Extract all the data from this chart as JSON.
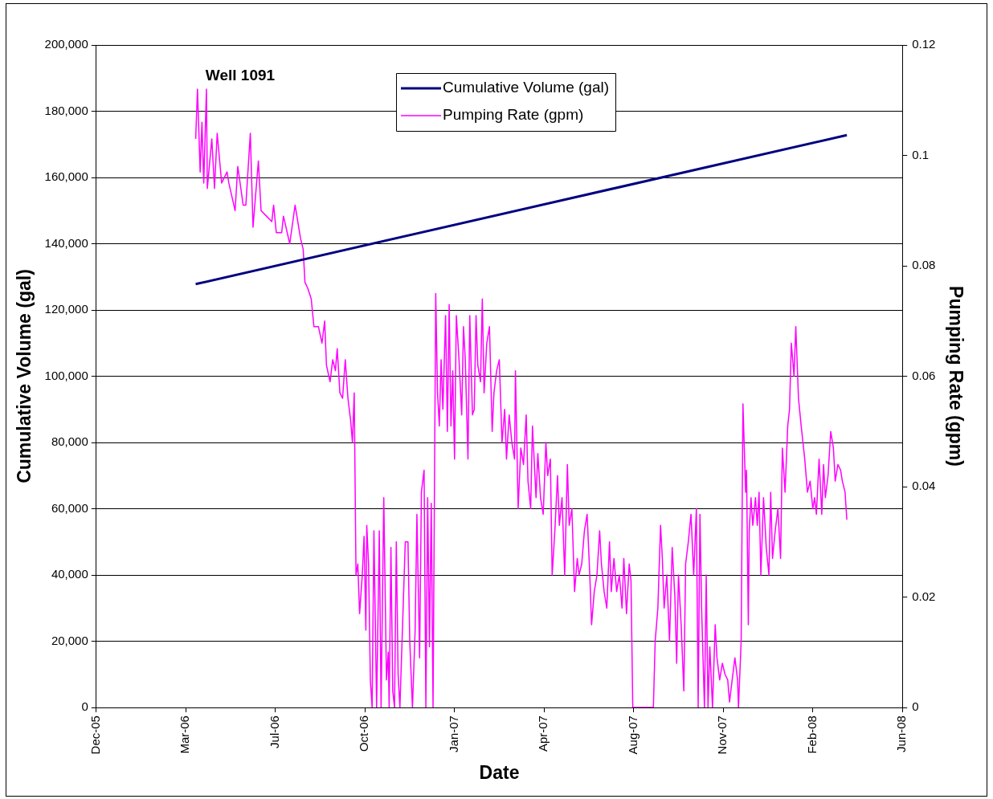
{
  "chart_data": {
    "type": "line",
    "xlabel": "Date",
    "ylabel": "Cumulative Volume (gal)",
    "y2label": "Pumping Rate (gpm)",
    "annotations": [
      "Well 1091"
    ],
    "xlim": [
      "2005-12-15",
      "2008-06-02"
    ],
    "xticks": [
      {
        "value": "2005-12-15",
        "label": "Dec-05"
      },
      {
        "value": "2006-03-25",
        "label": "Mar-06"
      },
      {
        "value": "2006-07-03",
        "label": "Jul-06"
      },
      {
        "value": "2006-10-11",
        "label": "Oct-06"
      },
      {
        "value": "2007-01-19",
        "label": "Jan-07"
      },
      {
        "value": "2007-04-29",
        "label": "Apr-07"
      },
      {
        "value": "2007-08-07",
        "label": "Aug-07"
      },
      {
        "value": "2007-11-15",
        "label": "Nov-07"
      },
      {
        "value": "2008-02-23",
        "label": "Feb-08"
      },
      {
        "value": "2008-06-02",
        "label": "Jun-08"
      }
    ],
    "ylim": [
      0,
      200000
    ],
    "yticks": [
      {
        "value": 0,
        "label": "0"
      },
      {
        "value": 20000,
        "label": "20,000"
      },
      {
        "value": 40000,
        "label": "40,000"
      },
      {
        "value": 60000,
        "label": "60,000"
      },
      {
        "value": 80000,
        "label": "80,000"
      },
      {
        "value": 100000,
        "label": "100,000"
      },
      {
        "value": 120000,
        "label": "120,000"
      },
      {
        "value": 140000,
        "label": "140,000"
      },
      {
        "value": 160000,
        "label": "160,000"
      },
      {
        "value": 180000,
        "label": "180,000"
      },
      {
        "value": 200000,
        "label": "200,000"
      }
    ],
    "y2lim": [
      0,
      0.12
    ],
    "y2ticks": [
      0,
      0.02,
      0.04,
      0.06,
      0.08,
      0.1,
      0.12
    ],
    "grid": "y",
    "legend": "top",
    "marker": "none",
    "line_style": "solid",
    "series": [
      {
        "name": "Cumulative Volume (gal)",
        "color": "#000080",
        "x": [
          "2006-04-05",
          "2008-04-01"
        ],
        "values": [
          127800,
          172800
        ]
      },
      {
        "name": "Pumping Rate (gpm)",
        "color": "#ff00ff",
        "axis": "y2",
        "x": [
          "2006-04-05",
          "2006-04-07",
          "2006-04-10",
          "2006-04-12",
          "2006-04-14",
          "2006-04-17",
          "2006-04-18",
          "2006-04-23",
          "2006-04-26",
          "2006-04-29",
          "2006-05-04",
          "2006-05-10",
          "2006-05-12",
          "2006-05-19",
          "2006-05-22",
          "2006-05-28",
          "2006-05-31",
          "2006-06-05",
          "2006-06-08",
          "2006-06-14",
          "2006-06-17",
          "2006-06-23",
          "2006-06-29",
          "2006-07-01",
          "2006-07-04",
          "2006-07-10",
          "2006-07-12",
          "2006-07-19",
          "2006-07-25",
          "2006-07-31",
          "2006-08-03",
          "2006-08-05",
          "2006-08-08",
          "2006-08-12",
          "2006-08-15",
          "2006-08-20",
          "2006-08-24",
          "2006-08-27",
          "2006-08-29",
          "2006-09-02",
          "2006-09-05",
          "2006-09-08",
          "2006-09-10",
          "2006-09-13",
          "2006-09-16",
          "2006-09-19",
          "2006-09-22",
          "2006-09-25",
          "2006-09-27",
          "2006-09-29",
          "2006-10-01",
          "2006-10-03",
          "2006-10-05",
          "2006-10-08",
          "2006-10-10",
          "2006-10-12",
          "2006-10-13",
          "2006-10-15",
          "2006-10-17",
          "2006-10-19",
          "2006-10-21",
          "2006-10-24",
          "2006-10-27",
          "2006-10-29",
          "2006-11-01",
          "2006-11-04",
          "2006-11-06",
          "2006-11-07",
          "2006-11-09",
          "2006-11-11",
          "2006-11-13",
          "2006-11-15",
          "2006-11-17",
          "2006-11-19",
          "2006-11-22",
          "2006-11-25",
          "2006-11-28",
          "2006-11-30",
          "2006-12-03",
          "2006-12-06",
          "2006-12-08",
          "2006-12-11",
          "2006-12-13",
          "2006-12-16",
          "2006-12-18",
          "2006-12-20",
          "2006-12-22",
          "2006-12-24",
          "2006-12-26",
          "2006-12-29",
          "2006-12-31",
          "2007-01-02",
          "2007-01-04",
          "2007-01-06",
          "2007-01-09",
          "2007-01-11",
          "2007-01-13",
          "2007-01-15",
          "2007-01-17",
          "2007-01-19",
          "2007-01-21",
          "2007-01-24",
          "2007-01-27",
          "2007-01-29",
          "2007-01-31",
          "2007-02-03",
          "2007-02-05",
          "2007-02-08",
          "2007-02-10",
          "2007-02-12",
          "2007-02-14",
          "2007-02-17",
          "2007-02-19",
          "2007-02-21",
          "2007-02-24",
          "2007-02-27",
          "2007-03-02",
          "2007-03-04",
          "2007-03-07",
          "2007-03-10",
          "2007-03-13",
          "2007-03-16",
          "2007-03-18",
          "2007-03-21",
          "2007-03-24",
          "2007-03-27",
          "2007-03-28",
          "2007-03-31",
          "2007-04-03",
          "2007-04-06",
          "2007-04-09",
          "2007-04-11",
          "2007-04-14",
          "2007-04-16",
          "2007-04-20",
          "2007-04-22",
          "2007-04-25",
          "2007-04-28",
          "2007-05-01",
          "2007-05-03",
          "2007-05-06",
          "2007-05-08",
          "2007-05-11",
          "2007-05-14",
          "2007-05-16",
          "2007-05-19",
          "2007-05-22",
          "2007-05-25",
          "2007-05-27",
          "2007-05-30",
          "2007-06-02",
          "2007-06-05",
          "2007-06-07",
          "2007-06-10",
          "2007-06-13",
          "2007-06-16",
          "2007-06-19",
          "2007-06-21",
          "2007-06-24",
          "2007-06-27",
          "2007-06-30",
          "2007-07-02",
          "2007-07-05",
          "2007-07-08",
          "2007-07-11",
          "2007-07-13",
          "2007-07-16",
          "2007-07-19",
          "2007-07-22",
          "2007-07-25",
          "2007-07-27",
          "2007-07-30",
          "2007-08-02",
          "2007-08-04",
          "2007-08-06",
          "2007-08-29",
          "2007-08-31",
          "2007-09-03",
          "2007-09-06",
          "2007-09-08",
          "2007-09-10",
          "2007-09-13",
          "2007-09-16",
          "2007-09-19",
          "2007-09-22",
          "2007-09-24",
          "2007-09-26",
          "2007-09-29",
          "2007-10-02",
          "2007-10-04",
          "2007-10-07",
          "2007-10-10",
          "2007-10-13",
          "2007-10-16",
          "2007-10-18",
          "2007-10-20",
          "2007-10-22",
          "2007-10-25",
          "2007-10-27",
          "2007-10-29",
          "2007-10-31",
          "2007-11-03",
          "2007-11-06",
          "2007-11-08",
          "2007-11-11",
          "2007-11-14",
          "2007-11-17",
          "2007-11-20",
          "2007-11-22",
          "2007-11-28",
          "2007-12-01",
          "2007-12-02",
          "2007-12-05",
          "2007-12-07",
          "2007-12-10",
          "2007-12-11",
          "2007-12-13",
          "2007-12-14",
          "2007-12-16",
          "2007-12-18",
          "2007-12-21",
          "2007-12-23",
          "2007-12-25",
          "2007-12-27",
          "2007-12-30",
          "2008-01-02",
          "2008-01-05",
          "2008-01-07",
          "2008-01-09",
          "2008-01-12",
          "2008-01-15",
          "2008-01-18",
          "2008-01-20",
          "2008-01-23",
          "2008-01-26",
          "2008-01-28",
          "2008-01-30",
          "2008-02-02",
          "2008-02-04",
          "2008-02-07",
          "2008-02-10",
          "2008-02-12",
          "2008-02-14",
          "2008-02-17",
          "2008-02-20",
          "2008-02-23",
          "2008-02-25",
          "2008-02-27",
          "2008-03-01",
          "2008-03-04",
          "2008-03-06",
          "2008-03-08",
          "2008-03-11",
          "2008-03-14",
          "2008-03-17",
          "2008-03-19",
          "2008-03-22",
          "2008-03-25",
          "2008-03-27",
          "2008-03-30",
          "2008-04-01"
        ],
        "values": [
          0.103,
          0.112,
          0.097,
          0.106,
          0.095,
          0.112,
          0.094,
          0.103,
          0.094,
          0.104,
          0.095,
          0.097,
          0.095,
          0.09,
          0.098,
          0.091,
          0.091,
          0.104,
          0.087,
          0.099,
          0.09,
          0.089,
          0.088,
          0.091,
          0.086,
          0.086,
          0.089,
          0.084,
          0.091,
          0.085,
          0.083,
          0.077,
          0.076,
          0.074,
          0.069,
          0.069,
          0.066,
          0.07,
          0.062,
          0.059,
          0.063,
          0.061,
          0.065,
          0.057,
          0.056,
          0.063,
          0.056,
          0.052,
          0.048,
          0.057,
          0.024,
          0.026,
          0.017,
          0.024,
          0.031,
          0.014,
          0.033,
          0.026,
          0.005,
          0,
          0.032,
          0,
          0.032,
          0,
          0.038,
          0.005,
          0.01,
          0,
          0.029,
          0.003,
          0,
          0.03,
          0.006,
          0,
          0.015,
          0.03,
          0.03,
          0.012,
          0,
          0.014,
          0.035,
          0.009,
          0.039,
          0.043,
          0,
          0.038,
          0.011,
          0.037,
          0,
          0.075,
          0.057,
          0.051,
          0.063,
          0.054,
          0.071,
          0.05,
          0.073,
          0.051,
          0.061,
          0.045,
          0.071,
          0.063,
          0.053,
          0.069,
          0.063,
          0.045,
          0.071,
          0.053,
          0.054,
          0.071,
          0.062,
          0.059,
          0.074,
          0.057,
          0.066,
          0.069,
          0.05,
          0.057,
          0.061,
          0.063,
          0.048,
          0.054,
          0.045,
          0.053,
          0.048,
          0.045,
          0.061,
          0.036,
          0.047,
          0.044,
          0.053,
          0.041,
          0.036,
          0.051,
          0.038,
          0.046,
          0.038,
          0.035,
          0.048,
          0.042,
          0.045,
          0.024,
          0.032,
          0.042,
          0.033,
          0.038,
          0.024,
          0.044,
          0.033,
          0.036,
          0.021,
          0.027,
          0.024,
          0.026,
          0.032,
          0.035,
          0.024,
          0.015,
          0.021,
          0.024,
          0.032,
          0.026,
          0.021,
          0.018,
          0.03,
          0.021,
          0.027,
          0.021,
          0.024,
          0.018,
          0.027,
          0.017,
          0.026,
          0.023,
          0,
          0,
          0.012,
          0.018,
          0.033,
          0.027,
          0.018,
          0.024,
          0.012,
          0.029,
          0.02,
          0.008,
          0.024,
          0.015,
          0.003,
          0.026,
          0.03,
          0.035,
          0.024,
          0.036,
          0,
          0.035,
          0.017,
          0,
          0.024,
          0,
          0.011,
          0,
          0.015,
          0.009,
          0.005,
          0.008,
          0.006,
          0.005,
          0.001,
          0.009,
          0.005,
          0,
          0.012,
          0.055,
          0.039,
          0.043,
          0.015,
          0.032,
          0.038,
          0.033,
          0.038,
          0.033,
          0.039,
          0.024,
          0.038,
          0.029,
          0.024,
          0.039,
          0.027,
          0.032,
          0.036,
          0.027,
          0.047,
          0.039,
          0.051,
          0.054,
          0.066,
          0.06,
          0.069,
          0.056,
          0.051,
          0.048,
          0.045,
          0.039,
          0.041,
          0.036,
          0.038,
          0.035,
          0.045,
          0.035,
          0.044,
          0.038,
          0.042,
          0.05,
          0.047,
          0.041,
          0.044,
          0.043,
          0.041,
          0.039,
          0.034
        ]
      }
    ]
  }
}
